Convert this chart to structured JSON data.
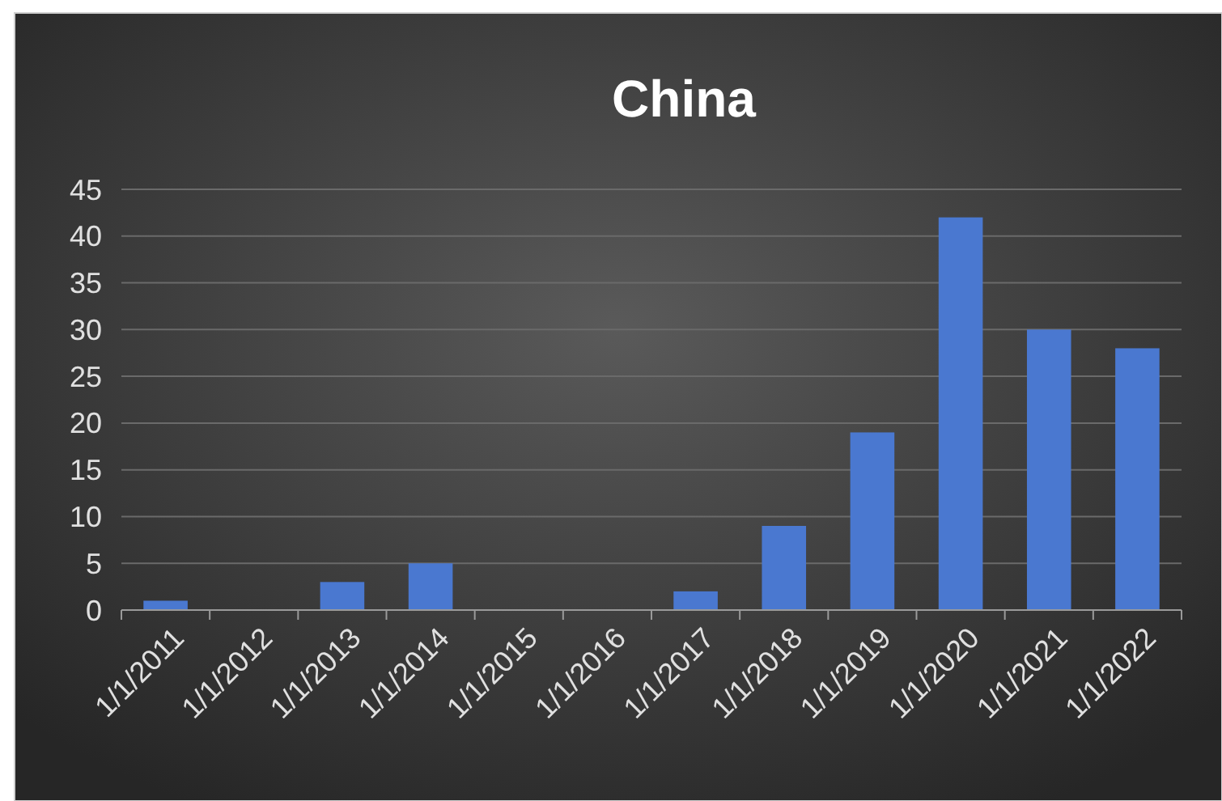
{
  "chart_data": {
    "type": "bar",
    "title": "China",
    "categories": [
      "1/1/2011",
      "1/1/2012",
      "1/1/2013",
      "1/1/2014",
      "1/1/2015",
      "1/1/2016",
      "1/1/2017",
      "1/1/2018",
      "1/1/2019",
      "1/1/2020",
      "1/1/2021",
      "1/1/2022"
    ],
    "values": [
      1,
      0,
      3,
      5,
      0,
      0,
      2,
      9,
      19,
      42,
      30,
      28
    ],
    "color": "#4a78d0",
    "ylim": [
      0,
      45
    ],
    "yticks": [
      0,
      5,
      10,
      15,
      20,
      25,
      30,
      35,
      40,
      45
    ],
    "grid": "y"
  }
}
